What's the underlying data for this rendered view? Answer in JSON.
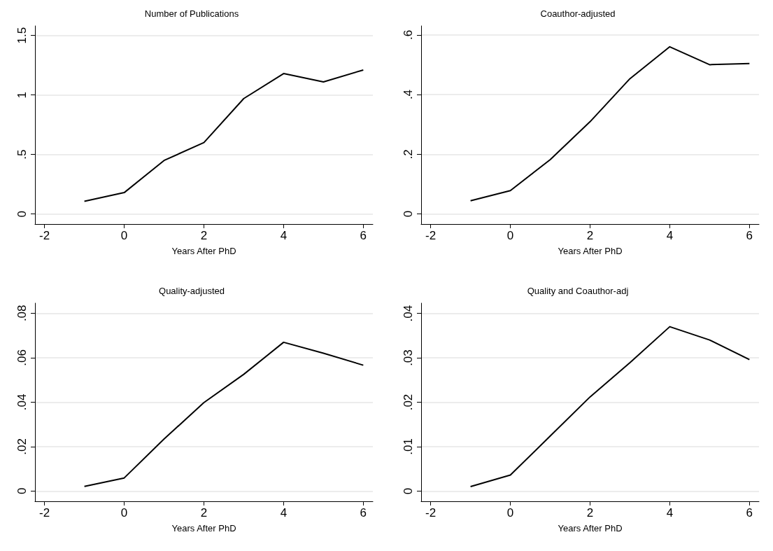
{
  "chart_data": [
    {
      "type": "line",
      "title": "Number of Publications",
      "xlabel": "Years After PhD",
      "x": [
        -1,
        0,
        1,
        2,
        3,
        4,
        5,
        6
      ],
      "series": [
        {
          "color": "#000000",
          "values": [
            0.107,
            0.18,
            0.45,
            0.6,
            0.97,
            1.18,
            1.11,
            1.21
          ]
        }
      ],
      "xlim": [
        -2.24,
        6.24
      ],
      "xticks": [
        -2,
        0,
        2,
        4,
        6
      ],
      "ylim": [
        -0.084,
        1.58
      ],
      "yticks": [
        0,
        {
          "value": 0.5,
          "label": ".5"
        },
        1,
        1.5
      ],
      "grid": "y",
      "marker": "none",
      "line_style": "solid"
    },
    {
      "type": "line",
      "title": "Coauthor-adjusted",
      "xlabel": "Years After PhD",
      "x": [
        -1,
        0,
        1,
        2,
        3,
        4,
        5,
        6
      ],
      "series": [
        {
          "color": "#000000",
          "values": [
            0.044,
            0.078,
            0.182,
            0.309,
            0.453,
            0.56,
            0.5,
            0.504
          ]
        }
      ],
      "xlim": [
        -2.24,
        6.24
      ],
      "xticks": [
        -2,
        0,
        2,
        4,
        6
      ],
      "ylim": [
        -0.034,
        0.63
      ],
      "yticks": [
        0,
        {
          "value": 0.2,
          "label": ".2"
        },
        {
          "value": 0.4,
          "label": ".4"
        },
        {
          "value": 0.6,
          "label": ".6"
        }
      ],
      "grid": "y",
      "marker": "none",
      "line_style": "solid"
    },
    {
      "type": "line",
      "title": "Quality-adjusted",
      "xlabel": "Years After PhD",
      "x": [
        -1,
        0,
        1,
        2,
        3,
        4,
        5,
        6
      ],
      "series": [
        {
          "color": "#000000",
          "values": [
            0.0021,
            0.0059,
            0.0234,
            0.0398,
            0.0525,
            0.0669,
            0.062,
            0.0566
          ]
        }
      ],
      "xlim": [
        -2.24,
        6.24
      ],
      "xticks": [
        -2,
        0,
        2,
        4,
        6
      ],
      "ylim": [
        -0.0046,
        0.0845
      ],
      "yticks": [
        0,
        {
          "value": 0.02,
          "label": ".02"
        },
        {
          "value": 0.04,
          "label": ".04"
        },
        {
          "value": 0.06,
          "label": ".06"
        },
        {
          "value": 0.08,
          "label": ".08"
        }
      ],
      "grid": "y",
      "marker": "none",
      "line_style": "solid"
    },
    {
      "type": "line",
      "title": "Quality and Coauthor-adj",
      "xlabel": "Years After PhD",
      "x": [
        -1,
        0,
        1,
        2,
        3,
        4,
        5,
        6
      ],
      "series": [
        {
          "color": "#000000",
          "values": [
            0.001,
            0.0036,
            0.0124,
            0.0212,
            0.0289,
            0.037,
            0.034,
            0.0296
          ]
        }
      ],
      "xlim": [
        -2.24,
        6.24
      ],
      "xticks": [
        -2,
        0,
        2,
        4,
        6
      ],
      "ylim": [
        -0.0023,
        0.0423
      ],
      "yticks": [
        0,
        {
          "value": 0.01,
          "label": ".01"
        },
        {
          "value": 0.02,
          "label": ".02"
        },
        {
          "value": 0.03,
          "label": ".03"
        },
        {
          "value": 0.04,
          "label": ".04"
        }
      ],
      "grid": "y",
      "marker": "none",
      "line_style": "solid"
    }
  ]
}
